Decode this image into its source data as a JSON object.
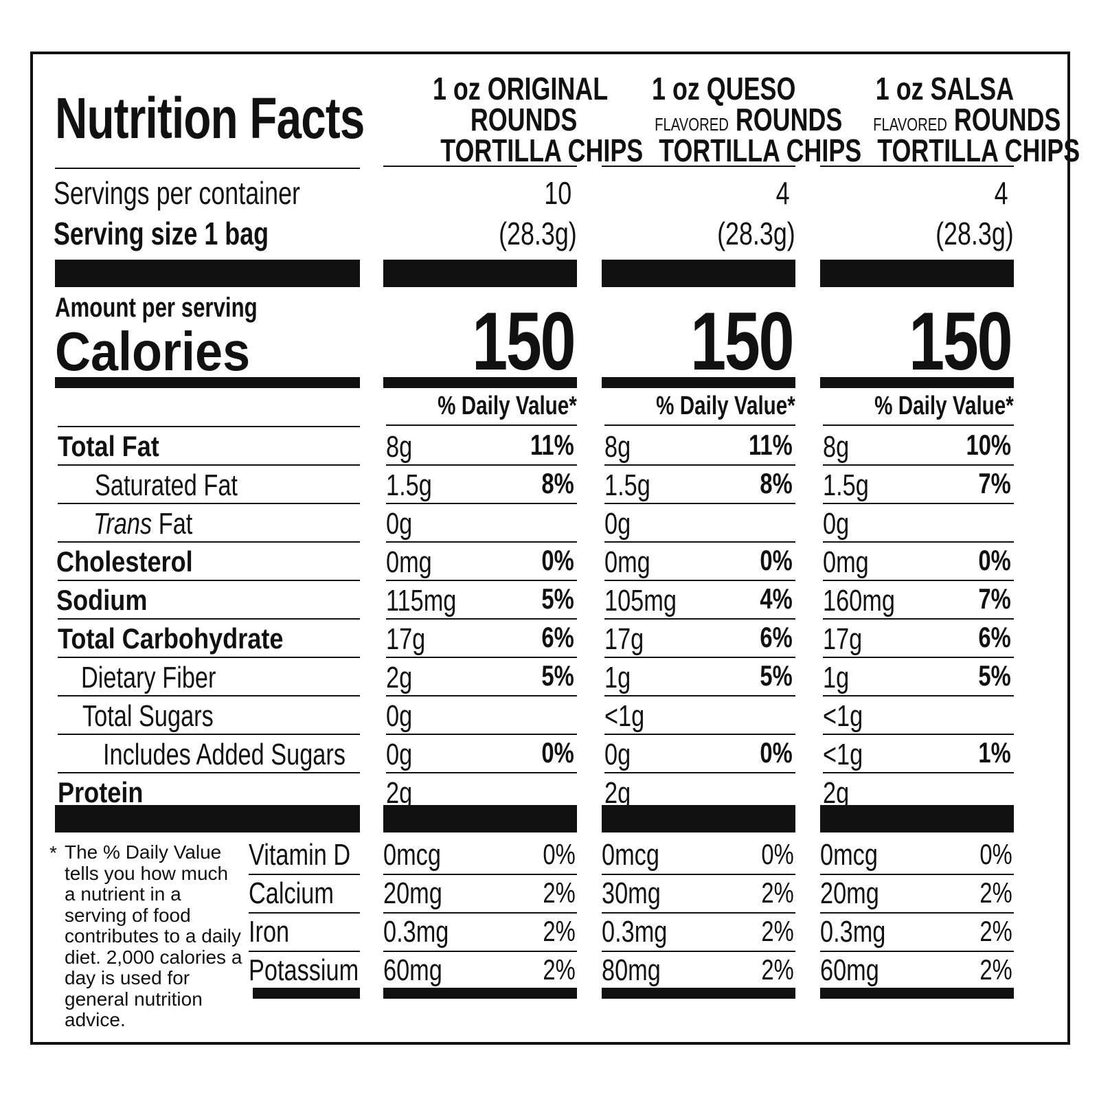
{
  "label": {
    "title": "Nutrition Facts",
    "servings_label": "Servings per container",
    "serving_size_label": "Serving size 1 bag",
    "amount_per_serving": "Amount per serving",
    "calories_label": "Calories",
    "daily_value_header": "% Daily Value*",
    "footnote_mark": "*",
    "footnote": "The % Daily Value tells you how much a nutrient in a serving of food contributes to a daily diet. 2,000 calories a day is used for general nutrition advice."
  },
  "nutrients": [
    {
      "name": "Total Fat"
    },
    {
      "name": "Saturated Fat"
    },
    {
      "name_italic": "Trans",
      "name": " Fat"
    },
    {
      "name": "Cholesterol"
    },
    {
      "name": "Sodium"
    },
    {
      "name": "Total Carbohydrate"
    },
    {
      "name": "Dietary Fiber"
    },
    {
      "name": "Total Sugars"
    },
    {
      "name": "Includes Added Sugars"
    },
    {
      "name": "Protein"
    }
  ],
  "vitamins": [
    "Vitamin D",
    "Calcium",
    "Iron",
    "Potassium"
  ],
  "products": [
    {
      "line1": "1 oz ORIGINAL",
      "line2_small": "",
      "line2": "ROUNDS",
      "line3": "TORTILLA CHIPS",
      "servings": "10",
      "serving_weight": "(28.3g)",
      "calories": "150",
      "amounts": [
        "8g",
        "1.5g",
        "0g",
        "0mg",
        "115mg",
        "17g",
        "2g",
        "0g",
        "0g",
        "2g"
      ],
      "dv": [
        "11%",
        "8%",
        "",
        "0%",
        "5%",
        "6%",
        "5%",
        "",
        "0%",
        ""
      ],
      "vit_amounts": [
        "0mcg",
        "20mg",
        "0.3mg",
        "60mg"
      ],
      "vit_dv": [
        "0%",
        "2%",
        "2%",
        "2%"
      ]
    },
    {
      "line1": "1 oz QUESO",
      "line2_small": "FLAVORED",
      "line2": "ROUNDS",
      "line3": "TORTILLA CHIPS",
      "servings": "4",
      "serving_weight": "(28.3g)",
      "calories": "150",
      "amounts": [
        "8g",
        "1.5g",
        "0g",
        "0mg",
        "105mg",
        "17g",
        "1g",
        "<1g",
        "0g",
        "2g"
      ],
      "dv": [
        "11%",
        "8%",
        "",
        "0%",
        "4%",
        "6%",
        "5%",
        "",
        "0%",
        ""
      ],
      "vit_amounts": [
        "0mcg",
        "30mg",
        "0.3mg",
        "80mg"
      ],
      "vit_dv": [
        "0%",
        "2%",
        "2%",
        "2%"
      ]
    },
    {
      "line1": "1 oz SALSA",
      "line2_small": "FLAVORED",
      "line2": "ROUNDS",
      "line3": "TORTILLA CHIPS",
      "servings": "4",
      "serving_weight": "(28.3g)",
      "calories": "150",
      "amounts": [
        "8g",
        "1.5g",
        "0g",
        "0mg",
        "160mg",
        "17g",
        "1g",
        "<1g",
        "<1g",
        "2g"
      ],
      "dv": [
        "10%",
        "7%",
        "",
        "0%",
        "7%",
        "6%",
        "5%",
        "",
        "1%",
        ""
      ],
      "vit_amounts": [
        "0mcg",
        "20mg",
        "0.3mg",
        "60mg"
      ],
      "vit_dv": [
        "0%",
        "2%",
        "2%",
        "2%"
      ]
    }
  ]
}
